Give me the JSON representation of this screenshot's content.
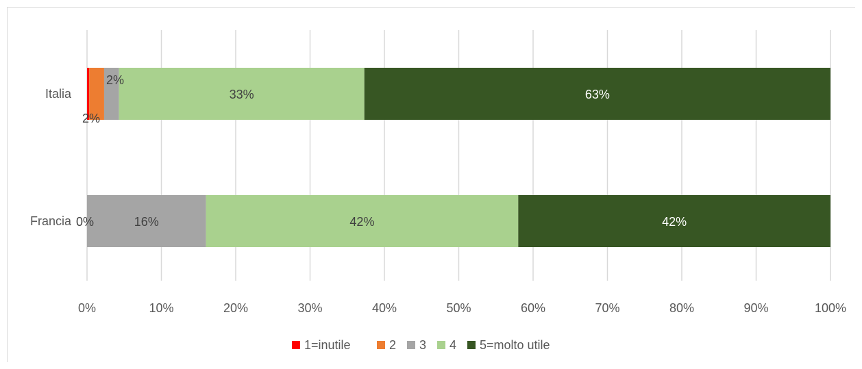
{
  "chart_data": {
    "type": "bar",
    "orientation": "horizontal",
    "stacked": "percent",
    "categories": [
      "Italia",
      "Francia"
    ],
    "series": [
      {
        "name": "1=inutile",
        "color": "#ff0000",
        "values": [
          0.3,
          0
        ],
        "labels": [
          "",
          "0%"
        ]
      },
      {
        "name": "2",
        "color": "#ed7d31",
        "values": [
          2,
          0
        ],
        "labels": [
          "2%",
          ""
        ]
      },
      {
        "name": "3",
        "color": "#a5a5a5",
        "values": [
          2,
          16
        ],
        "labels": [
          "2%",
          "16%"
        ]
      },
      {
        "name": "4",
        "color": "#a9d18e",
        "values": [
          33,
          42
        ],
        "labels": [
          "33%",
          "42%"
        ]
      },
      {
        "name": "5=molto utile",
        "color": "#375623",
        "values": [
          62.7,
          42
        ],
        "labels": [
          "63%",
          "42%"
        ]
      }
    ],
    "xlim": [
      0,
      100
    ],
    "xticks": [
      "0%",
      "10%",
      "20%",
      "30%",
      "40%",
      "50%",
      "60%",
      "70%",
      "80%",
      "90%",
      "100%"
    ],
    "grid": true,
    "legend": "bottom"
  }
}
